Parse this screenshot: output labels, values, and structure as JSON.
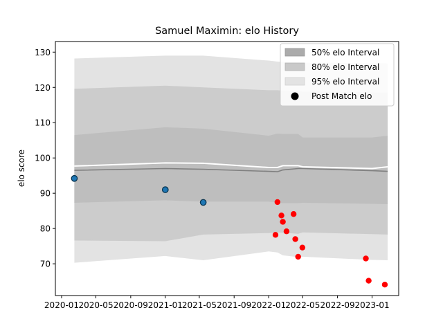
{
  "chart_data": {
    "type": "line",
    "title": "Samuel Maximin: elo History",
    "xlabel": "",
    "ylabel": "elo score",
    "xlim": [
      "2019-12-10",
      "2023-04-05"
    ],
    "ylim": [
      61,
      133
    ],
    "xticks": [
      "2020-01",
      "2020-05",
      "2020-09",
      "2021-01",
      "2021-05",
      "2021-09",
      "2022-01",
      "2022-05",
      "2022-09",
      "2023-01"
    ],
    "yticks": [
      70,
      80,
      90,
      100,
      110,
      120,
      130
    ],
    "legend_position": "top-right",
    "grid": false,
    "legend": [
      {
        "label": "50% elo Interval",
        "kind": "band",
        "color": "#ababab"
      },
      {
        "label": "80% elo Interval",
        "kind": "band",
        "color": "#c9c9c9"
      },
      {
        "label": "95% elo Interval",
        "kind": "band",
        "color": "#e3e3e3"
      },
      {
        "label": "Post Match elo",
        "kind": "marker",
        "color": "#000000"
      }
    ],
    "bands": {
      "dates": [
        "2020-02-15",
        "2021-01-01",
        "2021-05-15",
        "2022-01-01",
        "2022-02-01",
        "2022-02-20",
        "2022-04-15",
        "2022-05-01",
        "2023-01-01",
        "2023-02-25"
      ],
      "p95": {
        "upper": [
          128.2,
          129.0,
          129.0,
          127.6,
          127.3,
          127.2,
          127.1,
          127.0,
          126.9,
          126.8
        ],
        "lower": [
          70.3,
          72.2,
          71.0,
          73.5,
          73.2,
          72.4,
          71.9,
          72.0,
          71.1,
          71.0
        ],
        "color": "#e3e3e3"
      },
      "p80": {
        "upper": [
          119.6,
          120.5,
          120.0,
          119.2,
          119.2,
          119.1,
          118.9,
          118.8,
          118.6,
          118.5
        ],
        "lower": [
          76.6,
          76.4,
          78.3,
          78.7,
          78.9,
          78.8,
          78.5,
          78.9,
          78.4,
          78.3
        ],
        "color": "#cccccc"
      },
      "p50": {
        "upper": [
          106.5,
          108.7,
          108.3,
          106.3,
          106.9,
          106.8,
          106.8,
          105.8,
          105.8,
          106.3
        ],
        "lower": [
          87.3,
          88.0,
          87.6,
          87.6,
          87.4,
          87.2,
          87.2,
          87.3,
          87.0,
          86.9
        ],
        "color": "#bebebe"
      }
    },
    "series": [
      {
        "name": "",
        "role": "mean",
        "color": "#ffffff",
        "x": [
          "2020-02-15",
          "2021-01-01",
          "2021-05-15",
          "2022-01-01",
          "2022-02-01",
          "2022-02-20",
          "2022-04-15",
          "2022-05-01",
          "2023-01-01",
          "2023-02-25"
        ],
        "y": [
          97.7,
          98.6,
          98.5,
          97.3,
          97.3,
          97.8,
          97.8,
          97.5,
          97.0,
          97.5
        ]
      },
      {
        "name": "",
        "role": "median",
        "color": "#808080",
        "x": [
          "2020-02-15",
          "2021-01-01",
          "2021-05-15",
          "2022-01-01",
          "2022-02-01",
          "2022-02-20",
          "2022-04-15",
          "2022-05-01",
          "2023-01-01",
          "2023-02-25"
        ],
        "y": [
          96.5,
          97.0,
          96.8,
          96.2,
          96.1,
          96.6,
          97.0,
          97.0,
          96.4,
          96.2
        ]
      }
    ],
    "points": [
      {
        "x": "2020-02-15",
        "y": 94.2,
        "color": "#1f77b4"
      },
      {
        "x": "2021-01-01",
        "y": 91.0,
        "color": "#1f77b4"
      },
      {
        "x": "2021-05-15",
        "y": 87.4,
        "color": "#1f77b4"
      },
      {
        "x": "2022-01-25",
        "y": 78.2,
        "color": "#ff0000"
      },
      {
        "x": "2022-02-01",
        "y": 87.5,
        "color": "#ff0000"
      },
      {
        "x": "2022-02-15",
        "y": 83.7,
        "color": "#ff0000"
      },
      {
        "x": "2022-02-20",
        "y": 81.9,
        "color": "#ff0000"
      },
      {
        "x": "2022-03-05",
        "y": 79.2,
        "color": "#ff0000"
      },
      {
        "x": "2022-03-30",
        "y": 84.1,
        "color": "#ff0000"
      },
      {
        "x": "2022-04-05",
        "y": 77.0,
        "color": "#ff0000"
      },
      {
        "x": "2022-04-15",
        "y": 72.0,
        "color": "#ff0000"
      },
      {
        "x": "2022-04-30",
        "y": 74.6,
        "color": "#ff0000"
      },
      {
        "x": "2022-12-10",
        "y": 71.5,
        "color": "#ff0000"
      },
      {
        "x": "2022-12-20",
        "y": 65.2,
        "color": "#ff0000"
      },
      {
        "x": "2023-02-15",
        "y": 64.1,
        "color": "#ff0000"
      }
    ]
  }
}
